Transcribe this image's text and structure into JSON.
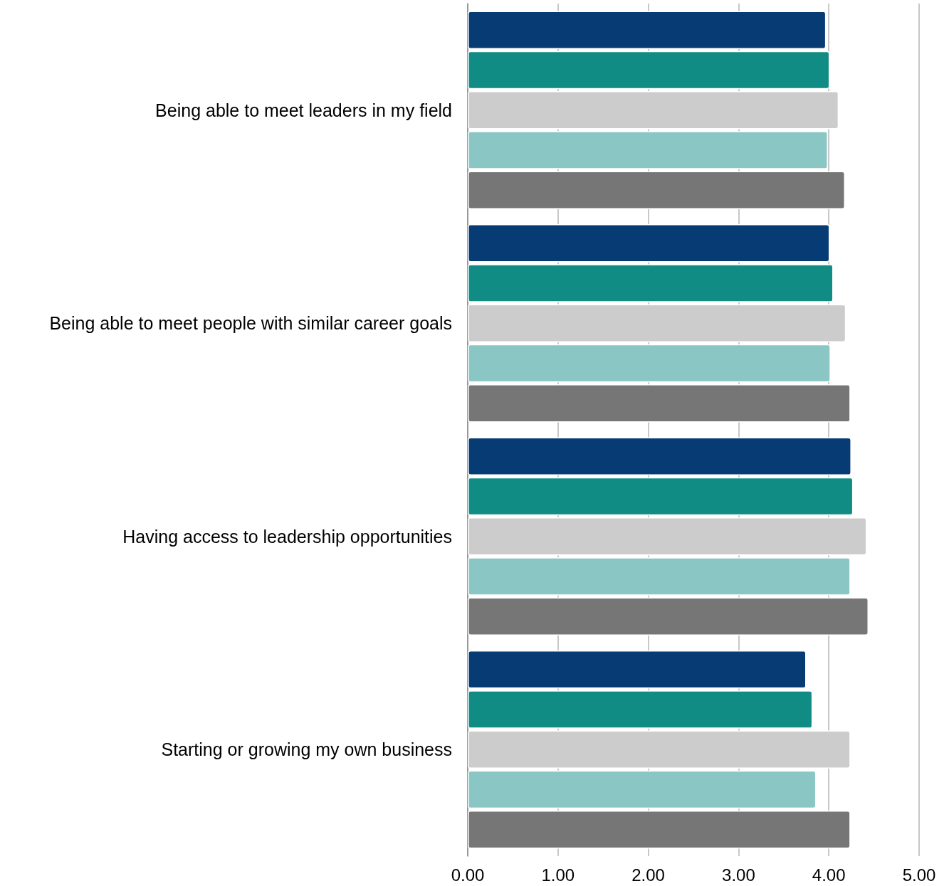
{
  "chart_data": {
    "type": "bar",
    "orientation": "horizontal",
    "categories": [
      "Being able to meet leaders in my field",
      "Being able to meet people with similar career goals",
      "Having access to leadership opportunities",
      "Starting or growing my own business"
    ],
    "series": [
      {
        "color": "#063c73",
        "values": [
          3.97,
          4.01,
          4.25,
          3.75
        ]
      },
      {
        "color": "#108c84",
        "values": [
          4.01,
          4.05,
          4.27,
          3.82
        ]
      },
      {
        "color": "#cccccc",
        "values": [
          4.11,
          4.19,
          4.42,
          4.24
        ]
      },
      {
        "color": "#8ac6c3",
        "values": [
          3.99,
          4.02,
          4.24,
          3.86
        ]
      },
      {
        "color": "#767676",
        "values": [
          4.18,
          4.24,
          4.44,
          4.24
        ]
      }
    ],
    "xlim": [
      0,
      5
    ],
    "xticks": [
      {
        "value": 0,
        "label": "0.00"
      },
      {
        "value": 1,
        "label": "1.00"
      },
      {
        "value": 2,
        "label": "2.00"
      },
      {
        "value": 3,
        "label": "3.00"
      },
      {
        "value": 4,
        "label": "4.00"
      },
      {
        "value": 5,
        "label": "5.00"
      }
    ],
    "grid": "x"
  }
}
